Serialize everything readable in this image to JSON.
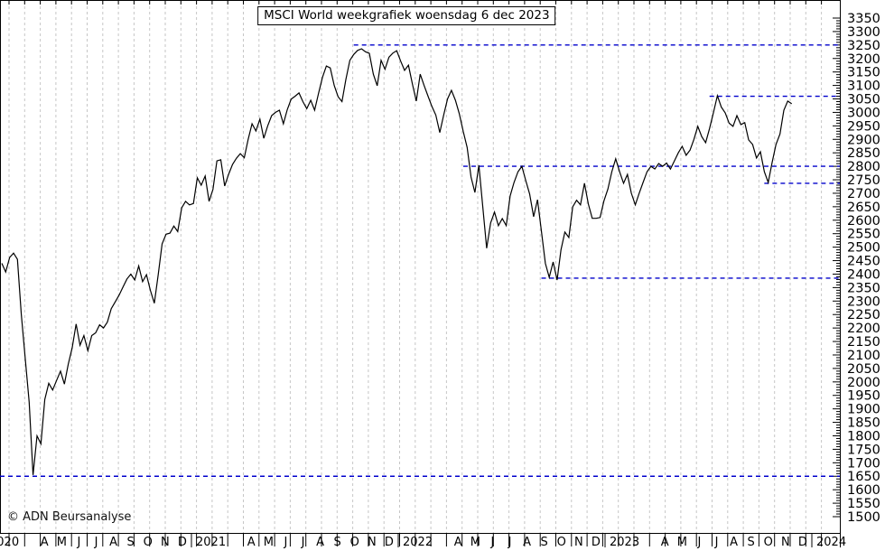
{
  "title": "MSCI World weekgrafiek woensdag 6 dec 2023",
  "copyright": "© ADN Beursanalyse",
  "colors": {
    "background": "#ffffff",
    "price_line": "#000000",
    "support_resistance": "#0000cc",
    "gridline": "#c6c6c6",
    "axis": "#000000",
    "label_text": "#000000"
  },
  "y_axis": {
    "min": 1500,
    "max": 3350,
    "major_step": 50,
    "minor_step": 10,
    "tick_labels": [
      3350,
      3300,
      3250,
      3200,
      3150,
      3100,
      3050,
      3000,
      2950,
      2900,
      2850,
      2800,
      2750,
      2700,
      2650,
      2600,
      2550,
      2500,
      2450,
      2400,
      2350,
      2300,
      2250,
      2200,
      2150,
      2100,
      2050,
      2000,
      1950,
      1900,
      1850,
      1800,
      1750,
      1700,
      1650,
      1600,
      1550,
      1500
    ]
  },
  "x_axis": {
    "year_labels": [
      "2020",
      "2021",
      "2022",
      "2023",
      "2024"
    ],
    "month_letters": [
      "A",
      "M",
      "J",
      "J",
      "A",
      "S",
      "O",
      "N",
      "D"
    ]
  },
  "chart_data": {
    "type": "line",
    "title": "MSCI World weekgrafiek woensdag 6 dec 2023",
    "frequency": "weekly",
    "x_start": "2020-01-24",
    "x_end": "2023-12-06",
    "xlabel": "",
    "ylabel": "",
    "ylim": [
      1500,
      3350
    ],
    "grid": "vertical-dashed",
    "values": [
      2440,
      2408,
      2462,
      2478,
      2455,
      2250,
      2085,
      1925,
      1655,
      1800,
      1770,
      1935,
      1995,
      1970,
      2005,
      2040,
      1992,
      2066,
      2126,
      2215,
      2136,
      2172,
      2116,
      2172,
      2182,
      2212,
      2200,
      2222,
      2272,
      2297,
      2322,
      2352,
      2382,
      2400,
      2378,
      2430,
      2372,
      2398,
      2340,
      2292,
      2398,
      2512,
      2548,
      2552,
      2578,
      2558,
      2646,
      2670,
      2657,
      2662,
      2757,
      2730,
      2764,
      2670,
      2714,
      2820,
      2824,
      2727,
      2770,
      2807,
      2830,
      2847,
      2832,
      2900,
      2958,
      2931,
      2975,
      2904,
      2950,
      2988,
      3000,
      3008,
      2958,
      3010,
      3049,
      3060,
      3072,
      3040,
      3014,
      3045,
      3008,
      3070,
      3130,
      3172,
      3165,
      3100,
      3058,
      3040,
      3122,
      3193,
      3215,
      3230,
      3236,
      3225,
      3219,
      3142,
      3099,
      3193,
      3160,
      3205,
      3220,
      3229,
      3190,
      3156,
      3175,
      3105,
      3042,
      3142,
      3100,
      3060,
      3022,
      2990,
      2925,
      2990,
      3050,
      3082,
      3045,
      2995,
      2930,
      2870,
      2760,
      2703,
      2804,
      2650,
      2496,
      2590,
      2630,
      2580,
      2606,
      2580,
      2690,
      2740,
      2780,
      2800,
      2747,
      2697,
      2613,
      2676,
      2560,
      2440,
      2388,
      2445,
      2378,
      2490,
      2556,
      2536,
      2650,
      2674,
      2657,
      2737,
      2660,
      2607,
      2607,
      2610,
      2672,
      2715,
      2780,
      2828,
      2780,
      2737,
      2770,
      2700,
      2657,
      2700,
      2740,
      2780,
      2800,
      2790,
      2810,
      2800,
      2812,
      2790,
      2820,
      2850,
      2874,
      2841,
      2860,
      2900,
      2948,
      2910,
      2888,
      2940,
      3000,
      3062,
      3020,
      2998,
      2960,
      2948,
      2988,
      2955,
      2962,
      2898,
      2881,
      2831,
      2854,
      2780,
      2740,
      2814,
      2881,
      2920,
      3008,
      3042,
      3032
    ],
    "support_resistance_lines": [
      {
        "value": 3250,
        "from_week": 90
      },
      {
        "value": 3060,
        "from_week": 181
      },
      {
        "value": 2800,
        "from_week": 118
      },
      {
        "value": 2737,
        "from_week": 195
      },
      {
        "value": 2385,
        "from_week": 138
      },
      {
        "value": 1650,
        "from_week": -1
      }
    ]
  }
}
